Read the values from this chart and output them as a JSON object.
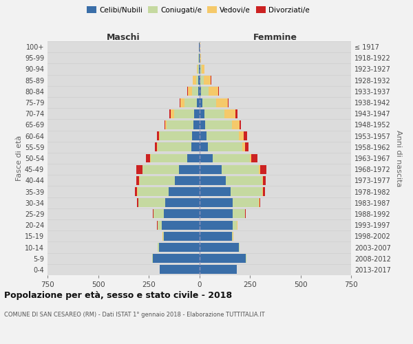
{
  "age_groups": [
    "0-4",
    "5-9",
    "10-14",
    "15-19",
    "20-24",
    "25-29",
    "30-34",
    "35-39",
    "40-44",
    "45-49",
    "50-54",
    "55-59",
    "60-64",
    "65-69",
    "70-74",
    "75-79",
    "80-84",
    "85-89",
    "90-94",
    "95-99",
    "100+"
  ],
  "birth_years": [
    "2013-2017",
    "2008-2012",
    "2003-2007",
    "1998-2002",
    "1993-1997",
    "1988-1992",
    "1983-1987",
    "1978-1982",
    "1973-1977",
    "1968-1972",
    "1963-1967",
    "1958-1962",
    "1953-1957",
    "1948-1952",
    "1943-1947",
    "1938-1942",
    "1933-1937",
    "1928-1932",
    "1923-1927",
    "1918-1922",
    "≤ 1917"
  ],
  "male_celibi": [
    195,
    230,
    200,
    175,
    185,
    175,
    170,
    150,
    120,
    100,
    60,
    40,
    35,
    30,
    25,
    12,
    6,
    4,
    3,
    2,
    2
  ],
  "male_coniugati": [
    1,
    2,
    5,
    5,
    20,
    50,
    130,
    155,
    175,
    180,
    180,
    165,
    160,
    130,
    100,
    60,
    30,
    12,
    5,
    2,
    0
  ],
  "male_vedovi": [
    0,
    0,
    0,
    1,
    1,
    2,
    2,
    2,
    2,
    2,
    2,
    3,
    5,
    8,
    15,
    20,
    20,
    15,
    5,
    2,
    0
  ],
  "male_divorziati": [
    0,
    0,
    0,
    1,
    2,
    3,
    5,
    10,
    15,
    30,
    20,
    12,
    10,
    5,
    8,
    5,
    2,
    0,
    0,
    0,
    0
  ],
  "female_celibi": [
    185,
    230,
    195,
    160,
    165,
    165,
    165,
    155,
    130,
    110,
    65,
    42,
    35,
    30,
    25,
    15,
    10,
    6,
    4,
    2,
    2
  ],
  "female_coniugati": [
    1,
    2,
    5,
    6,
    22,
    60,
    130,
    155,
    180,
    185,
    185,
    170,
    160,
    130,
    100,
    70,
    35,
    15,
    8,
    3,
    0
  ],
  "female_vedovi": [
    0,
    0,
    0,
    1,
    1,
    2,
    2,
    3,
    4,
    5,
    8,
    15,
    25,
    40,
    55,
    55,
    50,
    35,
    15,
    5,
    2
  ],
  "female_divorziati": [
    0,
    0,
    0,
    1,
    2,
    3,
    5,
    12,
    15,
    30,
    30,
    15,
    15,
    5,
    8,
    5,
    2,
    2,
    0,
    0,
    0
  ],
  "colors": {
    "celibi": "#3a6ea8",
    "coniugati": "#c5d9a0",
    "vedovi": "#f5c96a",
    "divorziati": "#cc2222"
  },
  "xlim": 750,
  "title": "Popolazione per età, sesso e stato civile - 2018",
  "subtitle": "COMUNE DI SAN CESAREO (RM) - Dati ISTAT 1° gennaio 2018 - Elaborazione TUTTITALIA.IT",
  "xlabel_left": "Maschi",
  "xlabel_right": "Femmine",
  "ylabel_left": "Fasce di età",
  "ylabel_right": "Anni di nascita"
}
